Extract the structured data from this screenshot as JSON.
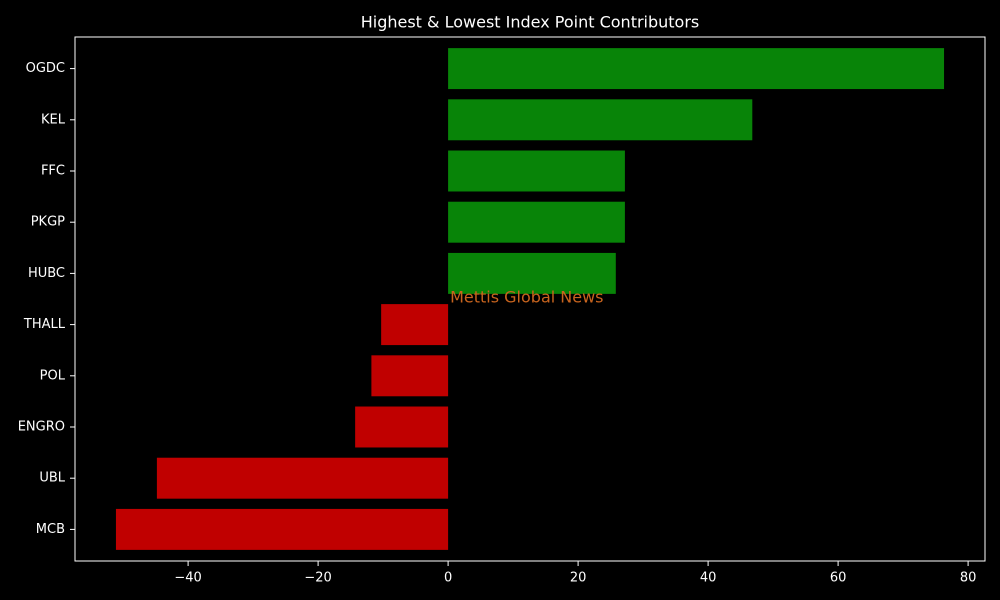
{
  "chart_data": {
    "type": "barh",
    "title": "Highest & Lowest Index Point Contributors",
    "annotation": "Mettis Global News",
    "categories": [
      "OGDC",
      "KEL",
      "FFC",
      "PKGP",
      "HUBC",
      "THALL",
      "POL",
      "ENGRO",
      "UBL",
      "MCB"
    ],
    "values": [
      76.3,
      46.8,
      27.2,
      27.2,
      25.8,
      -10.3,
      -11.8,
      -14.3,
      -44.8,
      -51.1
    ],
    "positive_color": "#088408",
    "negative_color": "#c00000",
    "xlim": [
      -57.4,
      82.6
    ],
    "xticks": [
      {
        "value": -40,
        "label": "−40"
      },
      {
        "value": -20,
        "label": "−20"
      },
      0,
      20,
      40,
      60,
      80
    ],
    "grid": false
  }
}
